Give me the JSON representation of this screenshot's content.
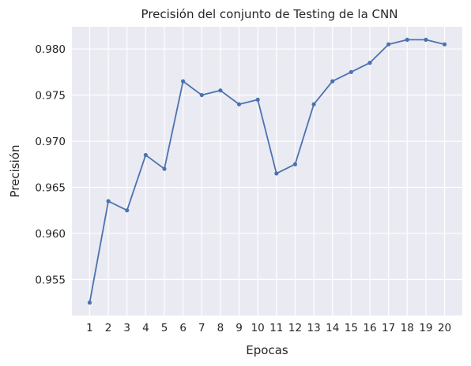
{
  "chart_data": {
    "type": "line",
    "title": "Precisión del conjunto de Testing de la CNN",
    "xlabel": "Epocas",
    "ylabel": "Precisión",
    "x": [
      1,
      2,
      3,
      4,
      5,
      6,
      7,
      8,
      9,
      10,
      11,
      12,
      13,
      14,
      15,
      16,
      17,
      18,
      19,
      20
    ],
    "x_ticks": [
      "1",
      "2",
      "3",
      "4",
      "5",
      "6",
      "7",
      "8",
      "9",
      "10",
      "11",
      "12",
      "13",
      "14",
      "15",
      "16",
      "17",
      "18",
      "19",
      "20"
    ],
    "y_ticks": [
      "0.955",
      "0.960",
      "0.965",
      "0.970",
      "0.975",
      "0.980"
    ],
    "y_tick_values": [
      0.955,
      0.96,
      0.965,
      0.97,
      0.975,
      0.98
    ],
    "series": [
      {
        "values": [
          0.9525,
          0.9635,
          0.9625,
          0.9685,
          0.967,
          0.9765,
          0.975,
          0.9755,
          0.974,
          0.9745,
          0.9665,
          0.9675,
          0.974,
          0.9765,
          0.9775,
          0.9785,
          0.9805,
          0.981,
          0.981,
          0.9805
        ],
        "color": "#4c72b0"
      }
    ],
    "xlim": [
      0.05,
      20.95
    ],
    "ylim": [
      0.9511,
      0.9824
    ],
    "grid": true,
    "plot_background": "#eaeaf2",
    "marker": "circle"
  }
}
